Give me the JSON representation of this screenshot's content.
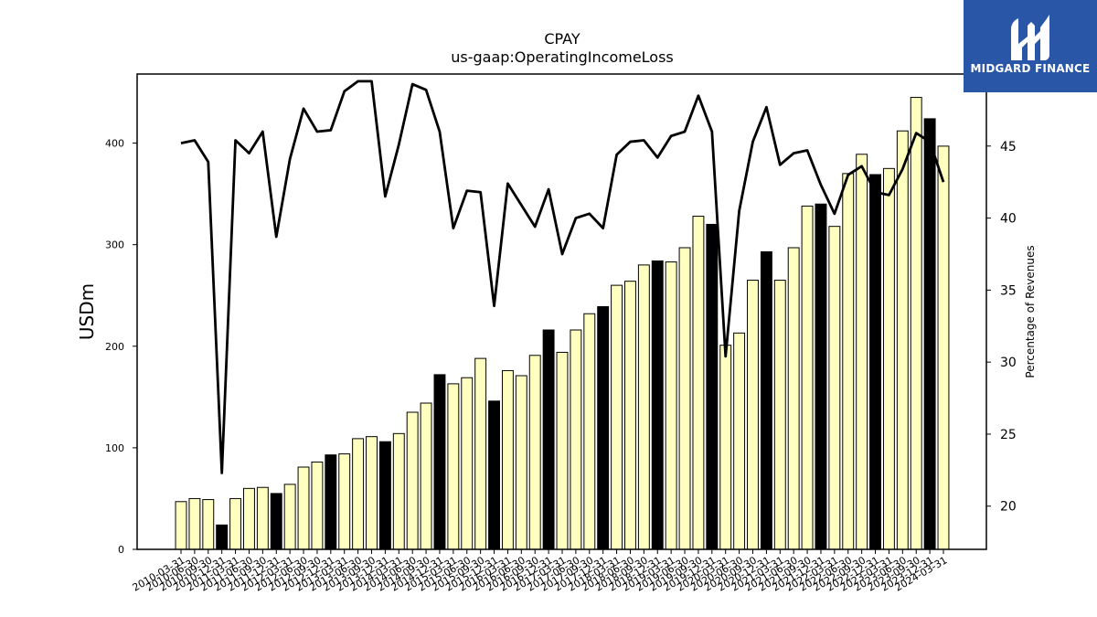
{
  "chart_data": {
    "type": "bar",
    "title": "CPAY",
    "subtitle": "us-gaap:OperatingIncomeLoss",
    "ylabel": "USDm",
    "ylabel_right": "Percentage of Revenues",
    "ylim": [
      0,
      468
    ],
    "ylim_right": [
      17,
      50
    ],
    "yticks": [
      0,
      100,
      200,
      300,
      400
    ],
    "yticks_right": [
      20,
      25,
      30,
      35,
      40,
      45
    ],
    "categories": [
      "2010-03-31",
      "2010-06-30",
      "2010-09-30",
      "2010-12-31",
      "2011-03-31",
      "2011-06-30",
      "2011-09-30",
      "2011-12-31",
      "2012-03-31",
      "2012-06-30",
      "2012-09-30",
      "2012-12-31",
      "2013-03-31",
      "2013-06-30",
      "2013-09-30",
      "2013-12-31",
      "2014-03-31",
      "2014-06-30",
      "2014-09-30",
      "2014-12-31",
      "2015-03-31",
      "2015-06-30",
      "2015-09-30",
      "2015-12-31",
      "2016-03-31",
      "2016-06-30",
      "2016-09-30",
      "2016-12-31",
      "2017-03-31",
      "2017-06-30",
      "2017-09-30",
      "2017-12-31",
      "2018-03-31",
      "2018-06-30",
      "2018-09-30",
      "2018-12-31",
      "2019-03-31",
      "2019-06-30",
      "2019-09-30",
      "2019-12-31",
      "2020-03-31",
      "2020-06-30",
      "2020-09-30",
      "2020-12-31",
      "2021-03-31",
      "2021-06-30",
      "2021-09-30",
      "2021-12-31",
      "2022-03-31",
      "2022-06-30",
      "2022-09-30",
      "2022-12-31",
      "2023-03-31",
      "2023-06-30",
      "2023-09-30",
      "2023-12-31",
      "2024-03-31"
    ],
    "series": [
      {
        "type": "bar",
        "values": [
          47,
          50,
          49,
          24,
          50,
          60,
          61,
          55,
          64,
          81,
          86,
          93,
          94,
          109,
          111,
          106,
          114,
          135,
          144,
          172,
          163,
          169,
          188,
          146,
          176,
          171,
          191,
          216,
          194,
          216,
          232,
          239,
          260,
          264,
          280,
          284,
          283,
          297,
          328,
          320,
          201,
          213,
          265,
          293,
          265,
          297,
          338,
          340,
          318,
          370,
          389,
          369,
          375,
          412,
          445,
          424,
          397
        ],
        "highlight": [
          false,
          false,
          false,
          true,
          false,
          false,
          false,
          true,
          false,
          false,
          false,
          true,
          false,
          false,
          false,
          true,
          false,
          false,
          false,
          true,
          false,
          false,
          false,
          true,
          false,
          false,
          false,
          true,
          false,
          false,
          false,
          true,
          false,
          false,
          false,
          true,
          false,
          false,
          false,
          true,
          false,
          false,
          false,
          true,
          false,
          false,
          false,
          true,
          false,
          false,
          false,
          true,
          false,
          false,
          false,
          true,
          false
        ],
        "bar_color": "#ffffc0",
        "highlight_color": "#000000"
      },
      {
        "type": "line",
        "axis": "right",
        "values": [
          45.2,
          45.4,
          43.9,
          22.3,
          45.4,
          44.5,
          46.0,
          38.7,
          44.1,
          47.6,
          46.0,
          46.1,
          48.8,
          49.5,
          49.5,
          41.5,
          45.1,
          49.3,
          48.9,
          46.0,
          39.3,
          41.9,
          41.8,
          33.9,
          42.4,
          40.9,
          39.4,
          42.0,
          37.5,
          40.0,
          40.3,
          39.3,
          44.4,
          45.3,
          45.4,
          44.2,
          45.7,
          46.0,
          48.5,
          46.0,
          30.4,
          40.5,
          45.3,
          47.7,
          43.7,
          44.5,
          44.7,
          42.3,
          40.3,
          43.0,
          43.6,
          41.8,
          41.6,
          43.4,
          45.9,
          45.3,
          42.5
        ],
        "color": "#000000"
      }
    ],
    "grid": false,
    "legend": "none"
  },
  "logo": {
    "text": "MIDGARD FINANCE",
    "bg_color": "#2a56a8"
  }
}
